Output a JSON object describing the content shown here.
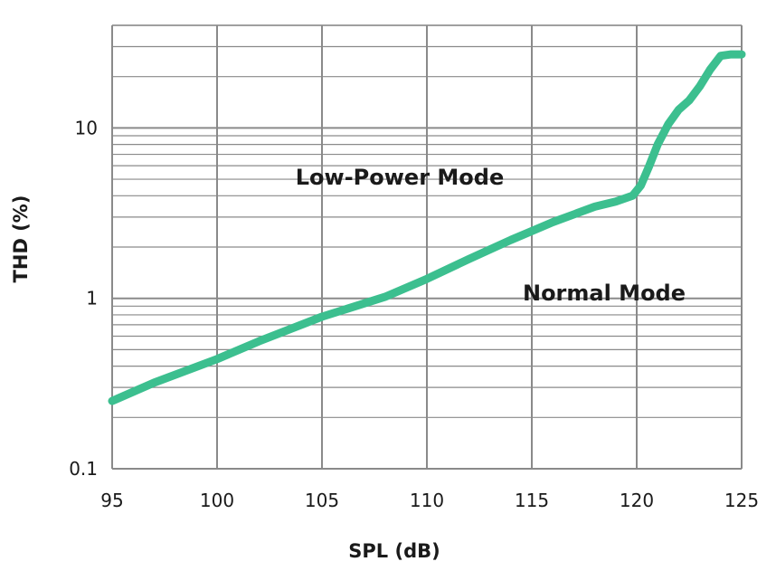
{
  "chart_data": {
    "type": "line",
    "title": "",
    "xlabel": "SPL (dB)",
    "ylabel": "THD (%)",
    "xlim": [
      95,
      125
    ],
    "ylim": [
      0.1,
      40
    ],
    "y_scale": "log",
    "x_ticks": [
      "95",
      "100",
      "105",
      "110",
      "115",
      "120",
      "125"
    ],
    "y_ticks": [
      "0.1",
      "1",
      "10"
    ],
    "grid": true,
    "annotations": [
      "Low-Power Mode",
      "Normal Mode"
    ],
    "line_color": "#3cbf8f",
    "grid_color": "#8a8a8a",
    "series": [
      {
        "x": [
          95,
          97,
          100,
          102,
          105,
          108,
          110,
          112,
          114,
          116,
          118,
          119,
          119.8,
          120.2,
          120.6,
          121,
          121.5,
          122,
          122.5,
          123,
          123.5,
          124,
          124.5,
          125
        ],
        "y": [
          0.25,
          0.32,
          0.44,
          0.56,
          0.78,
          1.02,
          1.3,
          1.7,
          2.2,
          2.8,
          3.45,
          3.7,
          4.0,
          4.6,
          6.0,
          8.0,
          10.5,
          12.8,
          14.5,
          17.5,
          22.0,
          26.5,
          27.0,
          27.0
        ]
      }
    ]
  }
}
